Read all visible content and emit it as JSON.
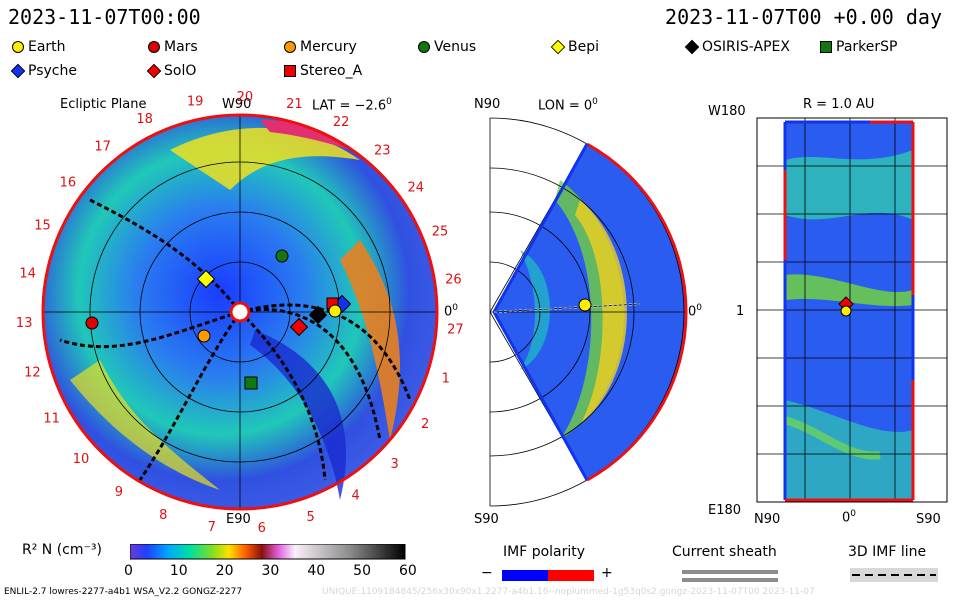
{
  "header": {
    "left_datetime": "2023-11-07T00:00",
    "right_datetime": "2023-11-07T00 +0.00 day"
  },
  "legend": {
    "items": [
      {
        "label": "Earth",
        "color": "#ffee00",
        "shape": "circle"
      },
      {
        "label": "Mars",
        "color": "#dd0000",
        "shape": "circle"
      },
      {
        "label": "Mercury",
        "color": "#ff9900",
        "shape": "circle"
      },
      {
        "label": "Venus",
        "color": "#117711",
        "shape": "circle"
      },
      {
        "label": "Bepi",
        "color": "#ffff00",
        "shape": "diamond"
      },
      {
        "label": "OSIRIS-APEX",
        "color": "#000000",
        "shape": "diamond"
      },
      {
        "label": "ParkerSP",
        "color": "#117711",
        "shape": "square"
      },
      {
        "label": "Psyche",
        "color": "#1133ee",
        "shape": "diamond"
      },
      {
        "label": "SolO",
        "color": "#ee0000",
        "shape": "diamond"
      },
      {
        "label": "Stereo_A",
        "color": "#ee0000",
        "shape": "square"
      }
    ]
  },
  "ecliptic": {
    "title": "Ecliptic Plane",
    "top_label": "W90",
    "lat_label": "LAT = −2.6",
    "lat_sup": "0",
    "bottom_label": "E90",
    "right_label": "0",
    "right_sup": "0",
    "ticks": [
      "19",
      "20",
      "21",
      "22",
      "23",
      "24",
      "25",
      "26",
      "27",
      "1",
      "2",
      "3",
      "4",
      "5",
      "6",
      "7",
      "8",
      "9",
      "10",
      "11",
      "12",
      "13",
      "14",
      "15",
      "16",
      "17",
      "18"
    ]
  },
  "meridional": {
    "top_left": "N90",
    "lon_label": "LON = 0",
    "lon_sup": "0",
    "right_label": "0",
    "right_sup": "0",
    "bottom_left": "S90"
  },
  "radial": {
    "title": "R = 1.0 AU",
    "top_left": "W180",
    "mid_left": "1",
    "bottom_left": "E180",
    "x_left": "N90",
    "x_mid": "0",
    "x_mid_sup": "0",
    "x_right": "S90"
  },
  "colorbar": {
    "label": "R² N (cm⁻³)",
    "ticks": [
      "0",
      "10",
      "20",
      "30",
      "40",
      "50",
      "60"
    ]
  },
  "imf": {
    "title": "IMF polarity",
    "minus": "−",
    "plus": "+",
    "minus_color": "#0000ff",
    "plus_color": "#ff0000"
  },
  "sheath": {
    "title": "Current sheath"
  },
  "imf3d": {
    "title": "3D IMF line"
  },
  "footer": {
    "left": "ENLIL-2.7 lowres-2277-a4b1 WSA_V2.2 GONGZ-2277",
    "right": "UNIQUE:1109184845/256x30x90x1.2277-a4b1.16--noplummed-1g53q0s2.gongz-2023-11-07T00    2023-11-07"
  }
}
